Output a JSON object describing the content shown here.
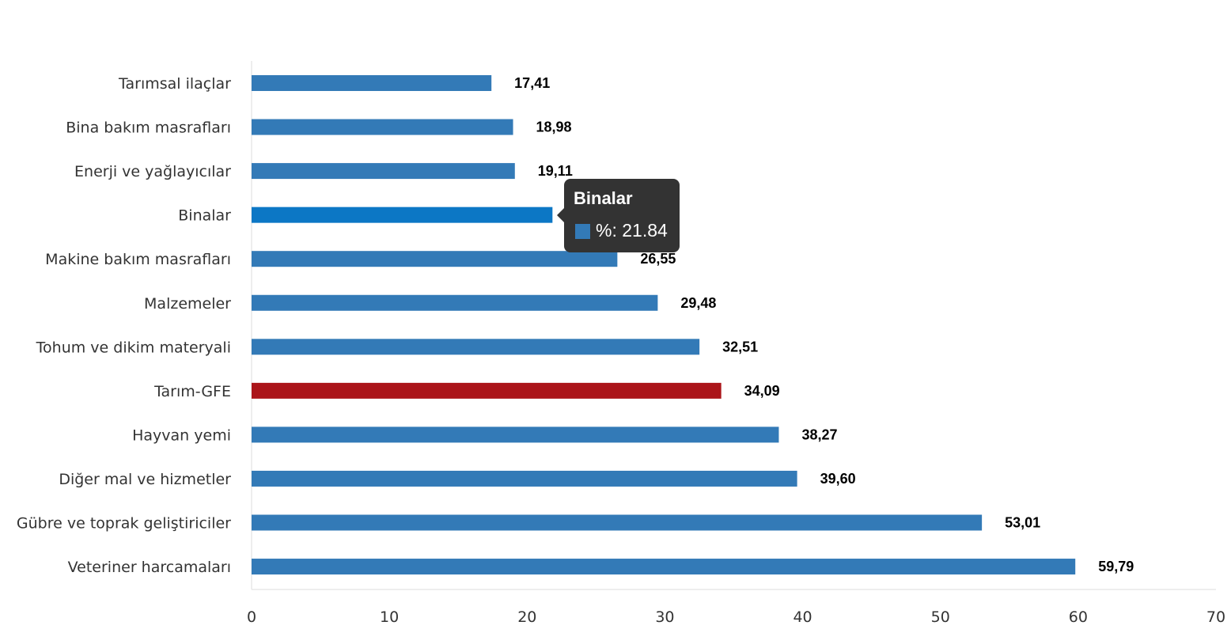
{
  "chart_data": {
    "type": "bar",
    "orientation": "horizontal",
    "categories": [
      "Tarımsal ilaçlar",
      "Bina bakım masrafları",
      "Enerji  ve yağlayıcılar",
      "Binalar",
      "Makine bakım masrafları",
      "Malzemeler",
      "Tohum ve dikim materyali",
      "Tarım-GFE",
      "Hayvan yemi",
      "Diğer mal ve hizmetler",
      "Gübre ve toprak geliştiriciler",
      "Veteriner harcamaları"
    ],
    "values": [
      17.41,
      18.98,
      19.11,
      21.84,
      26.55,
      29.48,
      32.51,
      34.09,
      38.27,
      39.6,
      53.01,
      59.79
    ],
    "value_labels": [
      "17,41",
      "18,98",
      "19,11",
      "21,84",
      "26,55",
      "29,48",
      "32,51",
      "34,09",
      "38,27",
      "39,60",
      "53,01",
      "59,79"
    ],
    "series_name": "%",
    "xlim": [
      0,
      70
    ],
    "xticks": [
      "0",
      "10",
      "20",
      "30",
      "40",
      "50",
      "60",
      "70"
    ],
    "colors": {
      "default": "#337ab7",
      "highlight": "#ab1419",
      "hover": "#0c77c5"
    },
    "highlight_index": 7,
    "hover_index": 3,
    "grid": false
  },
  "tooltip": {
    "title": "Binalar",
    "line": "%: 21.84"
  }
}
